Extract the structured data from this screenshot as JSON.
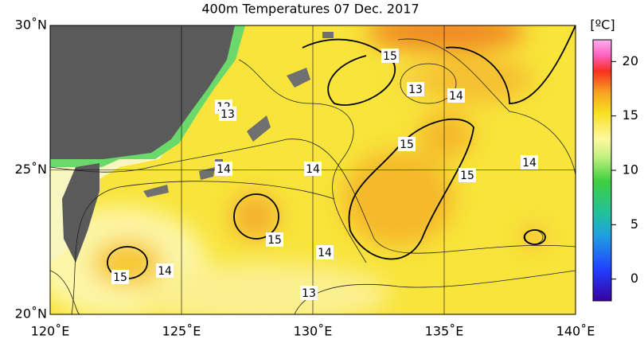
{
  "title": "400m Temperatures  07 Dec. 2017",
  "unit": "[ºC]",
  "map": {
    "lon_ticks": [
      {
        "value": 120,
        "label": "120˚E"
      },
      {
        "value": 125,
        "label": "125˚E"
      },
      {
        "value": 130,
        "label": "130˚E"
      },
      {
        "value": 135,
        "label": "135˚E"
      },
      {
        "value": 140,
        "label": "140˚E"
      }
    ],
    "lat_ticks": [
      {
        "value": 20,
        "label": "20˚N"
      },
      {
        "value": 25,
        "label": "25˚N"
      },
      {
        "value": 30,
        "label": "30˚N"
      }
    ],
    "lon_range": [
      120,
      140
    ],
    "lat_range": [
      20,
      30
    ],
    "contour_labels": [
      15,
      13,
      14,
      12,
      13,
      15,
      14,
      14,
      15,
      14,
      15,
      14,
      14,
      15,
      13
    ]
  },
  "colorbar": {
    "ticks": [
      0,
      5,
      10,
      15,
      20
    ],
    "range": [
      -2,
      22
    ]
  }
}
